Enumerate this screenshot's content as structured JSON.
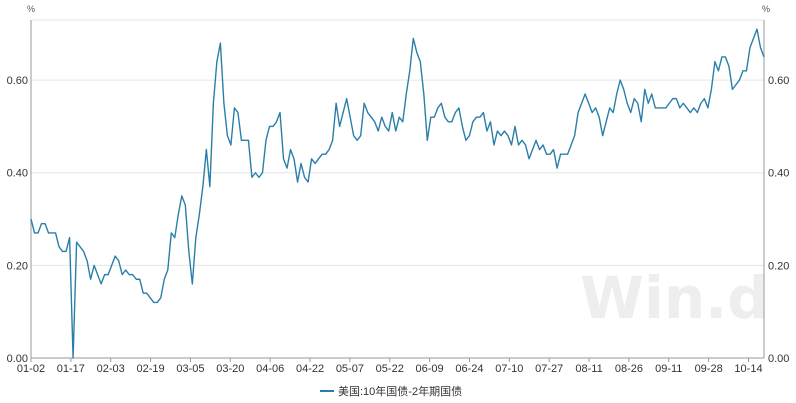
{
  "chart_data": {
    "type": "line",
    "y_unit_left": "%",
    "y_unit_right": "%",
    "ylim": [
      0,
      0.76
    ],
    "y_ticks": [
      "0.00",
      "0.20",
      "0.40",
      "0.60"
    ],
    "y_tick_values": [
      0,
      0.2,
      0.4,
      0.6
    ],
    "x_tick_labels": [
      "01-02",
      "01-17",
      "02-03",
      "02-19",
      "03-05",
      "03-20",
      "04-06",
      "04-22",
      "05-07",
      "05-22",
      "06-09",
      "06-24",
      "07-10",
      "07-27",
      "08-11",
      "08-26",
      "09-11",
      "09-28",
      "10-14"
    ],
    "x_tick_indices": [
      0,
      10,
      20,
      30,
      40,
      50,
      60,
      70,
      80,
      90,
      100,
      110,
      120,
      130,
      140,
      150,
      160,
      170,
      180
    ],
    "grid": true,
    "legend_position": "bottom-center",
    "watermark": "Win.d",
    "series": [
      {
        "name": "美国:10年国债-2年期国债",
        "color": "#2a7fa8",
        "values": [
          0.3,
          0.27,
          0.27,
          0.29,
          0.29,
          0.27,
          0.27,
          0.27,
          0.24,
          0.23,
          0.23,
          0.26,
          0.0,
          0.25,
          0.24,
          0.23,
          0.21,
          0.17,
          0.2,
          0.18,
          0.16,
          0.18,
          0.18,
          0.2,
          0.22,
          0.21,
          0.18,
          0.19,
          0.18,
          0.18,
          0.17,
          0.17,
          0.14,
          0.14,
          0.13,
          0.12,
          0.12,
          0.13,
          0.17,
          0.19,
          0.27,
          0.26,
          0.31,
          0.35,
          0.33,
          0.23,
          0.16,
          0.26,
          0.31,
          0.37,
          0.45,
          0.37,
          0.55,
          0.64,
          0.68,
          0.55,
          0.48,
          0.46,
          0.54,
          0.53,
          0.47,
          0.47,
          0.47,
          0.39,
          0.4,
          0.39,
          0.4,
          0.47,
          0.5,
          0.5,
          0.51,
          0.53,
          0.43,
          0.41,
          0.45,
          0.43,
          0.38,
          0.42,
          0.39,
          0.38,
          0.43,
          0.42,
          0.43,
          0.44,
          0.44,
          0.45,
          0.47,
          0.55,
          0.5,
          0.53,
          0.56,
          0.52,
          0.48,
          0.47,
          0.48,
          0.55,
          0.53,
          0.52,
          0.51,
          0.49,
          0.52,
          0.5,
          0.49,
          0.53,
          0.49,
          0.52,
          0.51,
          0.57,
          0.62,
          0.69,
          0.66,
          0.64,
          0.57,
          0.47,
          0.52,
          0.52,
          0.54,
          0.55,
          0.52,
          0.51,
          0.51,
          0.53,
          0.54,
          0.5,
          0.47,
          0.48,
          0.51,
          0.52,
          0.52,
          0.53,
          0.49,
          0.51,
          0.46,
          0.49,
          0.48,
          0.49,
          0.48,
          0.46,
          0.5,
          0.46,
          0.47,
          0.46,
          0.43,
          0.45,
          0.47,
          0.45,
          0.46,
          0.44,
          0.44,
          0.45,
          0.41,
          0.44,
          0.44,
          0.44,
          0.46,
          0.48,
          0.53,
          0.55,
          0.57,
          0.55,
          0.53,
          0.54,
          0.52,
          0.48,
          0.51,
          0.54,
          0.53,
          0.57,
          0.6,
          0.58,
          0.55,
          0.53,
          0.56,
          0.55,
          0.51,
          0.58,
          0.55,
          0.57,
          0.54,
          0.54,
          0.54,
          0.54,
          0.55,
          0.56,
          0.56,
          0.54,
          0.55,
          0.54,
          0.53,
          0.54,
          0.53,
          0.55,
          0.56,
          0.54,
          0.58,
          0.64,
          0.62,
          0.65,
          0.65,
          0.63,
          0.58,
          0.59,
          0.6,
          0.62,
          0.62,
          0.67,
          0.69,
          0.71,
          0.67,
          0.65
        ]
      }
    ]
  }
}
